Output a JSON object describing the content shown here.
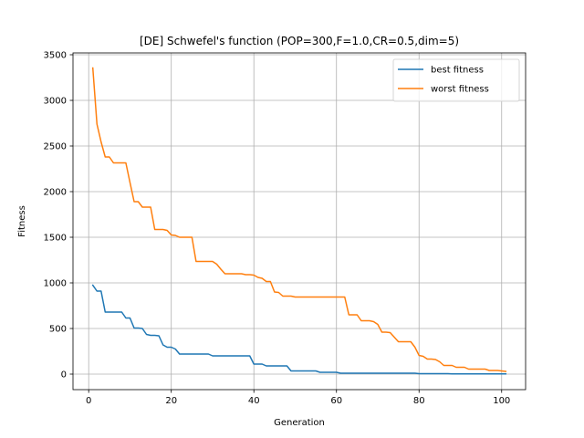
{
  "chart_data": {
    "type": "line",
    "title": "[DE] Schwefel's function (POP=300,F=1.0,CR=0.5,dim=5)",
    "xlabel": "Generation",
    "ylabel": "Fitness",
    "xlim": [
      -3.8,
      105.8
    ],
    "ylim": [
      -170,
      3520
    ],
    "xticks": [
      0,
      20,
      40,
      60,
      80,
      100
    ],
    "yticks": [
      0,
      500,
      1000,
      1500,
      2000,
      2500,
      3000,
      3500
    ],
    "xtick_labels": [
      "0",
      "20",
      "40",
      "60",
      "80",
      "100"
    ],
    "ytick_labels": [
      "0",
      "500",
      "1000",
      "1500",
      "2000",
      "2500",
      "3000",
      "3500"
    ],
    "grid": true,
    "legend": "top-right",
    "series": [
      {
        "name": "best fitness",
        "color": "#1f77b4",
        "points": [
          [
            1,
            975
          ],
          [
            2,
            910
          ],
          [
            3,
            910
          ],
          [
            4,
            680
          ],
          [
            5,
            680
          ],
          [
            6,
            680
          ],
          [
            7,
            680
          ],
          [
            8,
            680
          ],
          [
            9,
            615
          ],
          [
            10,
            615
          ],
          [
            11,
            505
          ],
          [
            12,
            505
          ],
          [
            13,
            500
          ],
          [
            14,
            435
          ],
          [
            15,
            425
          ],
          [
            16,
            425
          ],
          [
            17,
            420
          ],
          [
            18,
            320
          ],
          [
            19,
            295
          ],
          [
            20,
            295
          ],
          [
            21,
            275
          ],
          [
            22,
            220
          ],
          [
            23,
            220
          ],
          [
            24,
            220
          ],
          [
            25,
            220
          ],
          [
            26,
            220
          ],
          [
            27,
            220
          ],
          [
            28,
            220
          ],
          [
            29,
            220
          ],
          [
            30,
            200
          ],
          [
            31,
            200
          ],
          [
            32,
            200
          ],
          [
            33,
            200
          ],
          [
            34,
            200
          ],
          [
            35,
            200
          ],
          [
            36,
            200
          ],
          [
            37,
            200
          ],
          [
            38,
            200
          ],
          [
            39,
            200
          ],
          [
            40,
            110
          ],
          [
            41,
            110
          ],
          [
            42,
            110
          ],
          [
            43,
            90
          ],
          [
            44,
            90
          ],
          [
            45,
            90
          ],
          [
            46,
            90
          ],
          [
            47,
            90
          ],
          [
            48,
            90
          ],
          [
            49,
            35
          ],
          [
            50,
            35
          ],
          [
            51,
            35
          ],
          [
            52,
            35
          ],
          [
            53,
            35
          ],
          [
            54,
            35
          ],
          [
            55,
            35
          ],
          [
            56,
            20
          ],
          [
            57,
            20
          ],
          [
            58,
            20
          ],
          [
            59,
            20
          ],
          [
            60,
            20
          ],
          [
            61,
            10
          ],
          [
            62,
            10
          ],
          [
            63,
            10
          ],
          [
            64,
            10
          ],
          [
            65,
            10
          ],
          [
            66,
            10
          ],
          [
            67,
            10
          ],
          [
            68,
            10
          ],
          [
            69,
            10
          ],
          [
            70,
            10
          ],
          [
            71,
            10
          ],
          [
            72,
            10
          ],
          [
            73,
            10
          ],
          [
            74,
            10
          ],
          [
            75,
            10
          ],
          [
            76,
            10
          ],
          [
            77,
            10
          ],
          [
            78,
            10
          ],
          [
            79,
            10
          ],
          [
            80,
            5
          ],
          [
            81,
            5
          ],
          [
            82,
            5
          ],
          [
            83,
            5
          ],
          [
            84,
            5
          ],
          [
            85,
            5
          ],
          [
            86,
            5
          ],
          [
            87,
            5
          ],
          [
            88,
            3
          ],
          [
            89,
            3
          ],
          [
            90,
            3
          ],
          [
            91,
            3
          ],
          [
            92,
            3
          ],
          [
            93,
            3
          ],
          [
            94,
            3
          ],
          [
            95,
            3
          ],
          [
            96,
            3
          ],
          [
            97,
            3
          ],
          [
            98,
            3
          ],
          [
            99,
            3
          ],
          [
            100,
            3
          ],
          [
            101,
            3
          ]
        ]
      },
      {
        "name": "worst fitness",
        "color": "#ff7f0e",
        "points": [
          [
            1,
            3355
          ],
          [
            2,
            2740
          ],
          [
            3,
            2545
          ],
          [
            4,
            2380
          ],
          [
            5,
            2380
          ],
          [
            6,
            2315
          ],
          [
            7,
            2315
          ],
          [
            8,
            2315
          ],
          [
            9,
            2315
          ],
          [
            10,
            2100
          ],
          [
            11,
            1890
          ],
          [
            12,
            1890
          ],
          [
            13,
            1830
          ],
          [
            14,
            1830
          ],
          [
            15,
            1830
          ],
          [
            16,
            1585
          ],
          [
            17,
            1585
          ],
          [
            18,
            1585
          ],
          [
            19,
            1575
          ],
          [
            20,
            1525
          ],
          [
            21,
            1520
          ],
          [
            22,
            1500
          ],
          [
            23,
            1500
          ],
          [
            24,
            1500
          ],
          [
            25,
            1500
          ],
          [
            26,
            1235
          ],
          [
            27,
            1235
          ],
          [
            28,
            1235
          ],
          [
            29,
            1235
          ],
          [
            30,
            1235
          ],
          [
            31,
            1205
          ],
          [
            32,
            1150
          ],
          [
            33,
            1100
          ],
          [
            34,
            1100
          ],
          [
            35,
            1100
          ],
          [
            36,
            1100
          ],
          [
            37,
            1100
          ],
          [
            38,
            1090
          ],
          [
            39,
            1090
          ],
          [
            40,
            1085
          ],
          [
            41,
            1060
          ],
          [
            42,
            1050
          ],
          [
            43,
            1015
          ],
          [
            44,
            1015
          ],
          [
            45,
            900
          ],
          [
            46,
            895
          ],
          [
            47,
            855
          ],
          [
            48,
            855
          ],
          [
            49,
            855
          ],
          [
            50,
            845
          ],
          [
            51,
            845
          ],
          [
            52,
            845
          ],
          [
            53,
            845
          ],
          [
            54,
            845
          ],
          [
            55,
            845
          ],
          [
            56,
            845
          ],
          [
            57,
            845
          ],
          [
            58,
            845
          ],
          [
            59,
            845
          ],
          [
            60,
            845
          ],
          [
            61,
            845
          ],
          [
            62,
            845
          ],
          [
            63,
            650
          ],
          [
            64,
            650
          ],
          [
            65,
            650
          ],
          [
            66,
            585
          ],
          [
            67,
            585
          ],
          [
            68,
            585
          ],
          [
            69,
            575
          ],
          [
            70,
            545
          ],
          [
            71,
            460
          ],
          [
            72,
            460
          ],
          [
            73,
            455
          ],
          [
            74,
            405
          ],
          [
            75,
            355
          ],
          [
            76,
            355
          ],
          [
            77,
            355
          ],
          [
            78,
            355
          ],
          [
            79,
            295
          ],
          [
            80,
            205
          ],
          [
            81,
            195
          ],
          [
            82,
            165
          ],
          [
            83,
            165
          ],
          [
            84,
            160
          ],
          [
            85,
            135
          ],
          [
            86,
            95
          ],
          [
            87,
            95
          ],
          [
            88,
            95
          ],
          [
            89,
            75
          ],
          [
            90,
            75
          ],
          [
            91,
            75
          ],
          [
            92,
            55
          ],
          [
            93,
            55
          ],
          [
            94,
            55
          ],
          [
            95,
            55
          ],
          [
            96,
            55
          ],
          [
            97,
            40
          ],
          [
            98,
            40
          ],
          [
            99,
            40
          ],
          [
            100,
            35
          ],
          [
            101,
            30
          ]
        ]
      }
    ]
  }
}
